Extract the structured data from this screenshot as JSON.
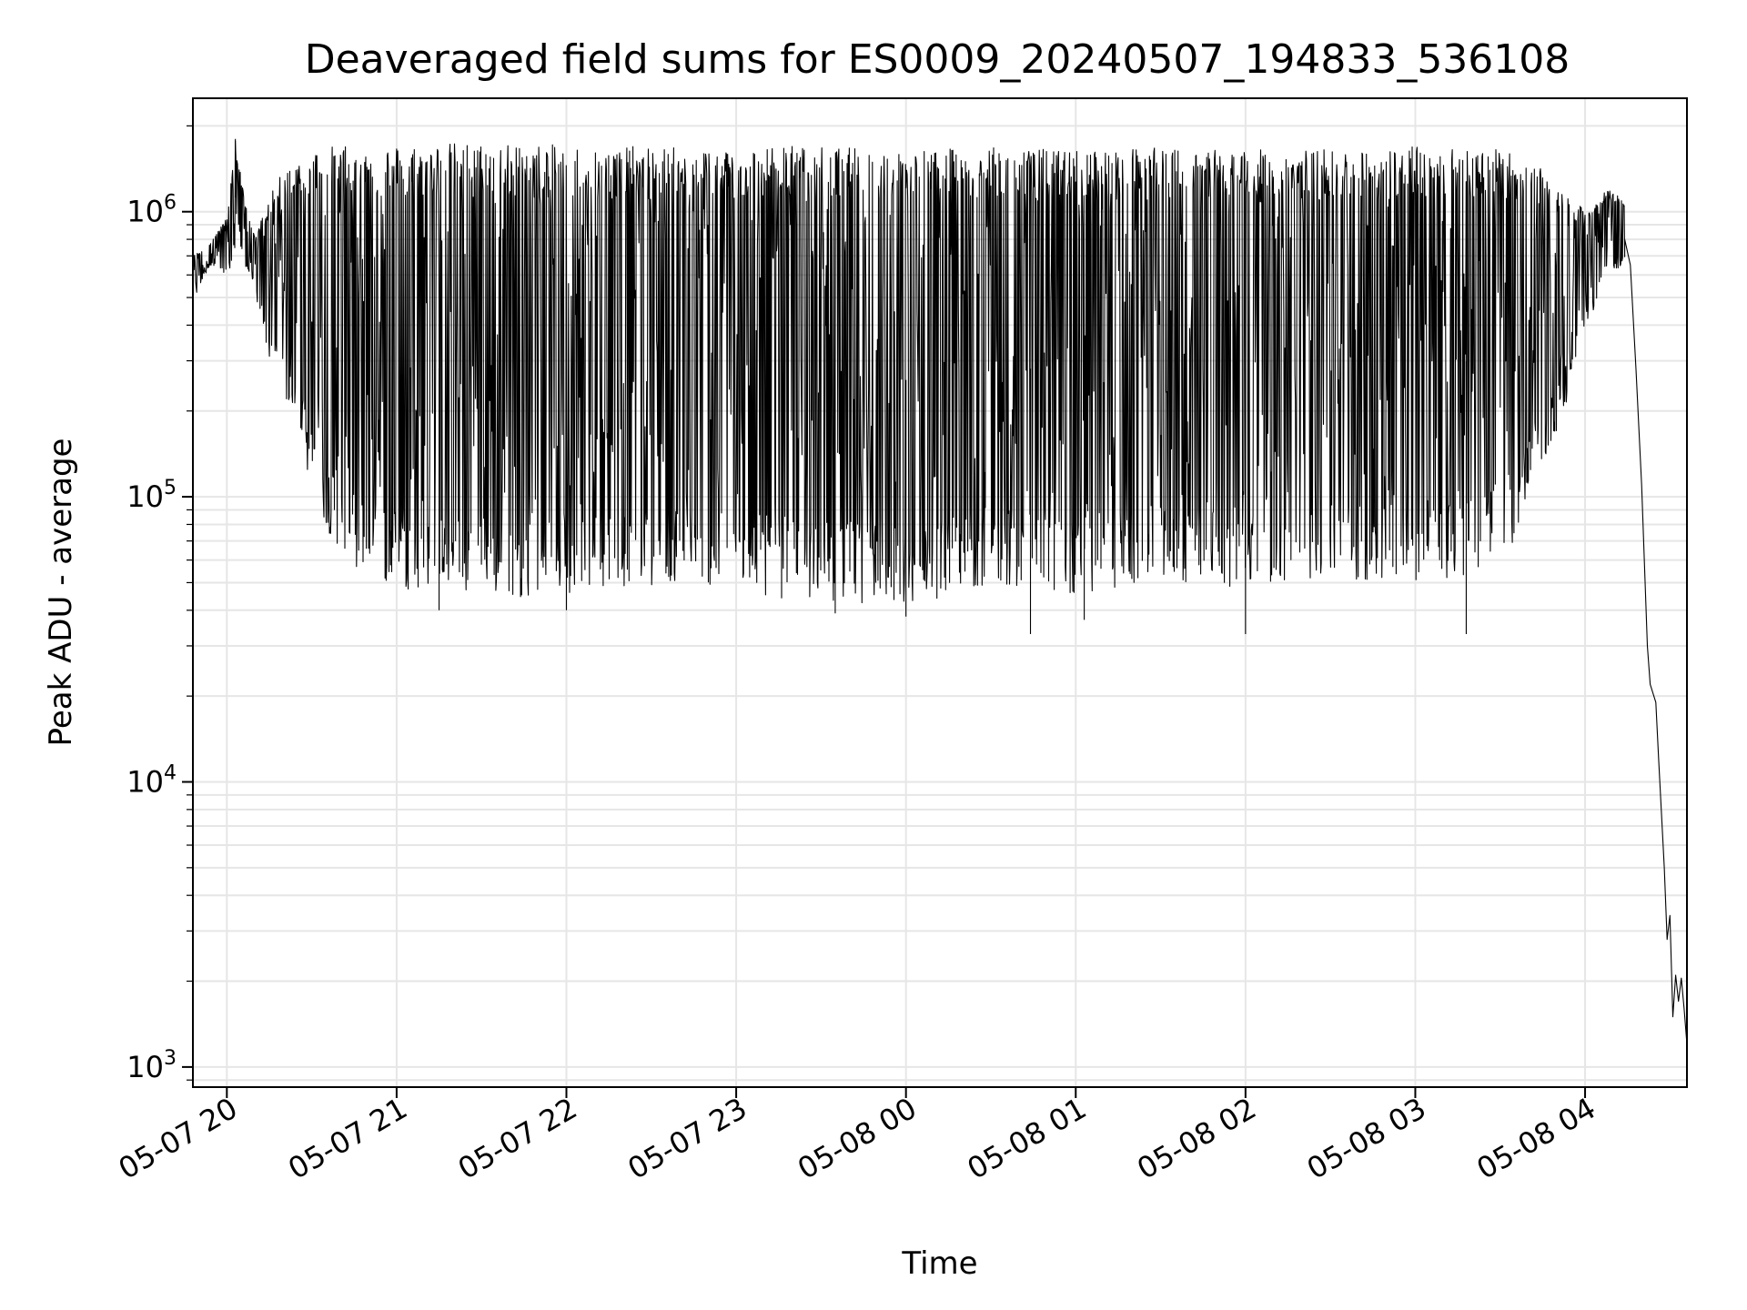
{
  "chart_data": {
    "type": "line",
    "title": "Deaveraged field sums for ES0009_20240507_194833_536108",
    "xlabel": "Time",
    "ylabel": "Peak ADU - average",
    "yscale": "log",
    "ylim": [
      850,
      2500000
    ],
    "xlim": [
      "2024-05-07 19:48",
      "2024-05-08 04:36"
    ],
    "grid": true,
    "x_ticks": [
      {
        "t": "2024-05-07 20:00",
        "label": "05-07 20"
      },
      {
        "t": "2024-05-07 21:00",
        "label": "05-07 21"
      },
      {
        "t": "2024-05-07 22:00",
        "label": "05-07 22"
      },
      {
        "t": "2024-05-07 23:00",
        "label": "05-07 23"
      },
      {
        "t": "2024-05-08 00:00",
        "label": "05-08 00"
      },
      {
        "t": "2024-05-08 01:00",
        "label": "05-08 01"
      },
      {
        "t": "2024-05-08 02:00",
        "label": "05-08 02"
      },
      {
        "t": "2024-05-08 03:00",
        "label": "05-08 03"
      },
      {
        "t": "2024-05-08 04:00",
        "label": "05-08 04"
      }
    ],
    "y_ticks": [
      {
        "value": 1000,
        "base": "10",
        "exp": "3"
      },
      {
        "value": 10000,
        "base": "10",
        "exp": "4"
      },
      {
        "value": 100000,
        "base": "10",
        "exp": "5"
      },
      {
        "value": 1000000,
        "base": "10",
        "exp": "6"
      }
    ],
    "series": [
      {
        "color": "#000000",
        "envelope": [
          {
            "t": "2024-05-07 19:48",
            "low": 480000,
            "high": 700000
          },
          {
            "t": "2024-05-07 19:54",
            "low": 650000,
            "high": 780000
          },
          {
            "t": "2024-05-07 20:00",
            "low": 580000,
            "high": 950000
          },
          {
            "t": "2024-05-07 20:03",
            "low": 700000,
            "high": 1800000
          },
          {
            "t": "2024-05-07 20:06",
            "low": 650000,
            "high": 1150000
          },
          {
            "t": "2024-05-07 20:10",
            "low": 550000,
            "high": 800000
          },
          {
            "t": "2024-05-07 20:13",
            "low": 320000,
            "high": 1000000
          },
          {
            "t": "2024-05-07 20:18",
            "low": 280000,
            "high": 1300000
          },
          {
            "t": "2024-05-07 20:24",
            "low": 170000,
            "high": 1500000
          },
          {
            "t": "2024-05-07 20:30",
            "low": 110000,
            "high": 1650000
          },
          {
            "t": "2024-05-07 20:36",
            "low": 75000,
            "high": 1700000
          },
          {
            "t": "2024-05-07 20:45",
            "low": 55000,
            "high": 1700000
          },
          {
            "t": "2024-05-07 21:00",
            "low": 48000,
            "high": 1720000
          },
          {
            "t": "2024-05-07 21:20",
            "low": 45000,
            "high": 1750000
          },
          {
            "t": "2024-05-07 21:45",
            "low": 44000,
            "high": 1730000
          },
          {
            "t": "2024-05-07 22:15",
            "low": 48000,
            "high": 1700000
          },
          {
            "t": "2024-05-07 22:45",
            "low": 50000,
            "high": 1680000
          },
          {
            "t": "2024-05-07 23:15",
            "low": 44000,
            "high": 1700000
          },
          {
            "t": "2024-05-07 23:45",
            "low": 42000,
            "high": 1680000
          },
          {
            "t": "2024-05-08 00:00",
            "low": 40000,
            "high": 1650000
          },
          {
            "t": "2024-05-08 00:30",
            "low": 50000,
            "high": 1680000
          },
          {
            "t": "2024-05-08 01:00",
            "low": 45000,
            "high": 1650000
          },
          {
            "t": "2024-05-08 01:30",
            "low": 50000,
            "high": 1680000
          },
          {
            "t": "2024-05-08 02:00",
            "low": 48000,
            "high": 1650000
          },
          {
            "t": "2024-05-08 02:30",
            "low": 50000,
            "high": 1650000
          },
          {
            "t": "2024-05-08 03:00",
            "low": 50000,
            "high": 1700000
          },
          {
            "t": "2024-05-08 03:20",
            "low": 52000,
            "high": 1720000
          },
          {
            "t": "2024-05-08 03:35",
            "low": 70000,
            "high": 1600000
          },
          {
            "t": "2024-05-08 03:45",
            "low": 130000,
            "high": 1400000
          },
          {
            "t": "2024-05-08 03:53",
            "low": 200000,
            "high": 1200000
          },
          {
            "t": "2024-05-08 04:00",
            "low": 380000,
            "high": 1000000
          },
          {
            "t": "2024-05-08 04:08",
            "low": 600000,
            "high": 1200000
          },
          {
            "t": "2024-05-08 04:14",
            "low": 650000,
            "high": 1100000
          }
        ],
        "tail": [
          {
            "t": "2024-05-08 04:14",
            "y": 800000
          },
          {
            "t": "2024-05-08 04:16",
            "y": 650000
          },
          {
            "t": "2024-05-08 04:18",
            "y": 280000
          },
          {
            "t": "2024-05-08 04:20",
            "y": 110000
          },
          {
            "t": "2024-05-08 04:22",
            "y": 30000
          },
          {
            "t": "2024-05-08 04:23",
            "y": 22000
          },
          {
            "t": "2024-05-08 04:25",
            "y": 19000
          },
          {
            "t": "2024-05-08 04:26",
            "y": 12000
          },
          {
            "t": "2024-05-08 04:28",
            "y": 5000
          },
          {
            "t": "2024-05-08 04:29",
            "y": 2800
          },
          {
            "t": "2024-05-08 04:30",
            "y": 3400
          },
          {
            "t": "2024-05-08 04:31",
            "y": 1500
          },
          {
            "t": "2024-05-08 04:32",
            "y": 2100
          },
          {
            "t": "2024-05-08 04:33",
            "y": 1700
          },
          {
            "t": "2024-05-08 04:34",
            "y": 2050
          },
          {
            "t": "2024-05-08 04:35",
            "y": 1600
          },
          {
            "t": "2024-05-08 04:36",
            "y": 1200
          }
        ],
        "spikes": [
          {
            "t": "2024-05-07 20:03",
            "y": 1800000
          },
          {
            "t": "2024-05-08 00:44",
            "y": 33000
          },
          {
            "t": "2024-05-08 01:03",
            "y": 37000
          },
          {
            "t": "2024-05-08 02:00",
            "y": 33000
          },
          {
            "t": "2024-05-08 03:18",
            "y": 33000
          },
          {
            "t": "2024-05-07 21:15",
            "y": 40000
          },
          {
            "t": "2024-05-07 22:00",
            "y": 40000
          },
          {
            "t": "2024-05-07 23:35",
            "y": 39000
          },
          {
            "t": "2024-05-08 00:00",
            "y": 38000
          }
        ]
      }
    ]
  }
}
